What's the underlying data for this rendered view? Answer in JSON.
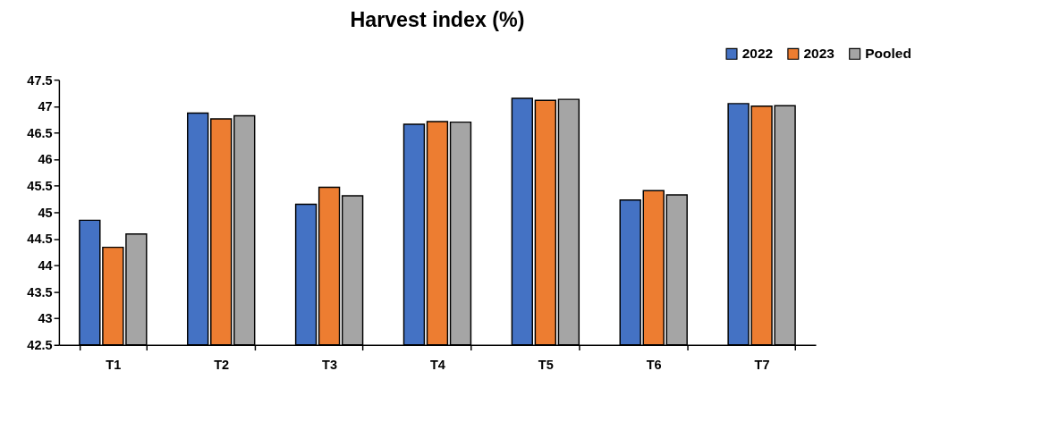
{
  "chart_data": {
    "type": "bar",
    "title": "Harvest index (%)",
    "categories": [
      "T1",
      "T2",
      "T3",
      "T4",
      "T5",
      "T6",
      "T7"
    ],
    "series": [
      {
        "name": "2022",
        "color": "#4472c4",
        "values": [
          44.85,
          46.87,
          45.15,
          46.66,
          47.15,
          45.23,
          47.05
        ]
      },
      {
        "name": "2023",
        "color": "#ed7d31",
        "values": [
          44.34,
          46.76,
          45.47,
          46.71,
          47.11,
          45.41,
          47.0
        ]
      },
      {
        "name": "Pooled",
        "color": "#a5a5a5",
        "values": [
          44.59,
          46.82,
          45.31,
          46.7,
          47.13,
          45.33,
          47.01
        ]
      }
    ],
    "ylim": [
      42.5,
      47.5
    ],
    "yticks": [
      42.5,
      43,
      43.5,
      44,
      44.5,
      45,
      45.5,
      46,
      46.5,
      47,
      47.5
    ],
    "grid": false,
    "legend": "top right"
  }
}
